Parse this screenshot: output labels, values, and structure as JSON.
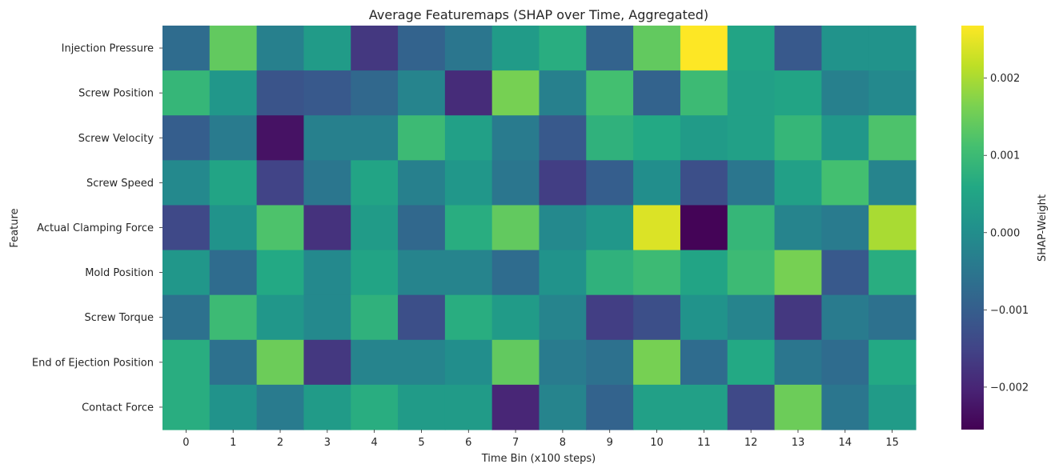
{
  "chart_data": {
    "type": "heatmap",
    "title": "Average Featuremaps (SHAP over Time, Aggregated)",
    "xlabel": "Time Bin (x100 steps)",
    "ylabel": "Feature",
    "x_categories": [
      "0",
      "1",
      "2",
      "3",
      "4",
      "5",
      "6",
      "7",
      "8",
      "9",
      "10",
      "11",
      "12",
      "13",
      "14",
      "15"
    ],
    "y_categories": [
      "Injection Pressure",
      "Screw Position",
      "Screw Velocity",
      "Screw Speed",
      "Actual Clamping Force",
      "Mold Position",
      "Screw Torque",
      "End of Ejection Position",
      "Contact Force"
    ],
    "values": [
      [
        -0.0007,
        0.0014,
        -0.0003,
        0.0003,
        -0.0017,
        -0.0009,
        -0.0005,
        0.0003,
        0.0007,
        -0.0009,
        0.0014,
        0.0027,
        0.0005,
        -0.0011,
        0.0001,
        0.0001
      ],
      [
        0.0009,
        0.0002,
        -0.0012,
        -0.0011,
        -0.0008,
        -0.0002,
        -0.0019,
        0.0016,
        -0.0003,
        0.0011,
        -0.0009,
        0.001,
        0.0004,
        0.0005,
        -0.0003,
        -0.0001
      ],
      [
        -0.001,
        -0.0004,
        -0.0023,
        -0.0003,
        -0.0003,
        0.001,
        0.0004,
        -0.0004,
        -0.0011,
        0.0008,
        0.0006,
        0.0003,
        0.0004,
        0.0009,
        0.0002,
        0.0012
      ],
      [
        -0.0001,
        0.0005,
        -0.0015,
        -0.0005,
        0.0005,
        -0.0003,
        0.0002,
        -0.0005,
        -0.0016,
        -0.001,
        0.0,
        -0.0013,
        -0.0005,
        0.0004,
        0.0011,
        -0.0002
      ],
      [
        -0.0014,
        0.0001,
        0.0012,
        -0.0018,
        0.0003,
        -0.0008,
        0.0007,
        0.0014,
        -0.0001,
        0.0002,
        0.0024,
        -0.0025,
        0.0009,
        -0.0002,
        -0.0004,
        0.002
      ],
      [
        0.0002,
        -0.0007,
        0.0006,
        -0.0001,
        0.0005,
        -0.0002,
        -0.0002,
        -0.0007,
        0.0001,
        0.0008,
        0.001,
        0.0005,
        0.001,
        0.0016,
        -0.0011,
        0.0007
      ],
      [
        -0.0006,
        0.001,
        0.0002,
        -0.0001,
        0.0008,
        -0.0013,
        0.0007,
        0.0003,
        -0.0002,
        -0.0016,
        -0.0013,
        0.0001,
        -0.0002,
        -0.0017,
        -0.0004,
        -0.0006
      ],
      [
        0.0007,
        -0.0006,
        0.0015,
        -0.0017,
        -0.0002,
        -0.0002,
        0.0,
        0.0014,
        -0.0004,
        -0.0006,
        0.0016,
        -0.0007,
        0.0006,
        -0.0005,
        -0.0007,
        0.0006
      ],
      [
        0.0007,
        0.0001,
        -0.0004,
        0.0003,
        0.0007,
        0.0003,
        0.0003,
        -0.002,
        -0.0002,
        -0.0009,
        0.0004,
        0.0004,
        -0.0014,
        0.0015,
        -0.0005,
        0.0003
      ]
    ],
    "vmin": -0.00255,
    "vmax": 0.00268,
    "colormap": "viridis",
    "colorbar": {
      "label": "SHAP-Weight",
      "ticks": [
        -0.002,
        -0.001,
        0.0,
        0.001,
        0.002
      ],
      "tick_labels": [
        "−0.002",
        "−0.001",
        "0.000",
        "0.001",
        "0.002"
      ]
    },
    "grid": false
  }
}
